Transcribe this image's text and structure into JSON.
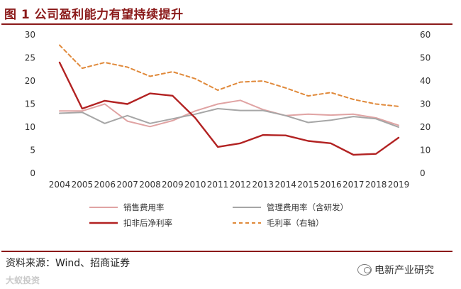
{
  "figure": {
    "title": "图 1 公司盈利能力有望持续提升",
    "source": "资料来源：Wind、招商证券",
    "watermark_left": "大蚁投资",
    "watermark_right": "电新产业研究"
  },
  "colors": {
    "title": "#8b1a1a",
    "sales_expense": "#e0a3a3",
    "mgmt_expense": "#a6a6a6",
    "net_margin": "#b22222",
    "gross_margin": "#e0893a"
  },
  "chart_data": {
    "type": "line",
    "title": "图 1 公司盈利能力有望持续提升",
    "categories": [
      "2004",
      "2005",
      "2006",
      "2007",
      "2008",
      "2009",
      "2010",
      "2011",
      "2012",
      "2013",
      "2014",
      "2015",
      "2016",
      "2017",
      "2018",
      "2019"
    ],
    "left_axis": {
      "range": [
        0,
        30
      ],
      "ticks": [
        "0",
        "5",
        "10",
        "15",
        "20",
        "25",
        "30"
      ],
      "tick_values": [
        0,
        5,
        10,
        15,
        20,
        25,
        30
      ]
    },
    "right_axis": {
      "range": [
        0,
        60
      ],
      "ticks": [
        "0",
        "10",
        "20",
        "30",
        "40",
        "50",
        "60"
      ],
      "tick_values": [
        0,
        10,
        20,
        30,
        40,
        50,
        60
      ]
    },
    "series": [
      {
        "name": "销售费用率",
        "axis": "left",
        "style": "solid",
        "color_key": "sales_expense",
        "values": [
          13.5,
          13.5,
          15.0,
          11.3,
          10.1,
          11.4,
          13.5,
          15.0,
          15.8,
          13.8,
          12.5,
          12.8,
          12.6,
          12.8,
          12.0,
          10.4
        ]
      },
      {
        "name": "管理费用率（含研发）",
        "axis": "left",
        "style": "solid",
        "color_key": "mgmt_expense",
        "values": [
          13.0,
          13.2,
          10.8,
          12.5,
          10.8,
          11.8,
          12.8,
          14.0,
          13.6,
          13.6,
          12.5,
          11.0,
          11.5,
          12.3,
          11.8,
          10.0
        ]
      },
      {
        "name": "扣非后净利率",
        "axis": "left",
        "style": "solid",
        "color_key": "net_margin",
        "values": [
          24.0,
          14.0,
          15.7,
          15.0,
          17.3,
          16.8,
          12.0,
          5.7,
          6.5,
          8.3,
          8.2,
          7.0,
          6.5,
          4.0,
          4.2,
          7.7
        ]
      },
      {
        "name": "毛利率（右轴）",
        "axis": "right",
        "style": "dashed",
        "color_key": "gross_margin",
        "values": [
          55.5,
          45.5,
          48.0,
          46.0,
          42.0,
          44.0,
          41.0,
          36.0,
          39.5,
          40.0,
          37.0,
          33.5,
          35.0,
          32.0,
          30.0,
          29.0
        ]
      }
    ],
    "legend_placement": "bottom"
  }
}
